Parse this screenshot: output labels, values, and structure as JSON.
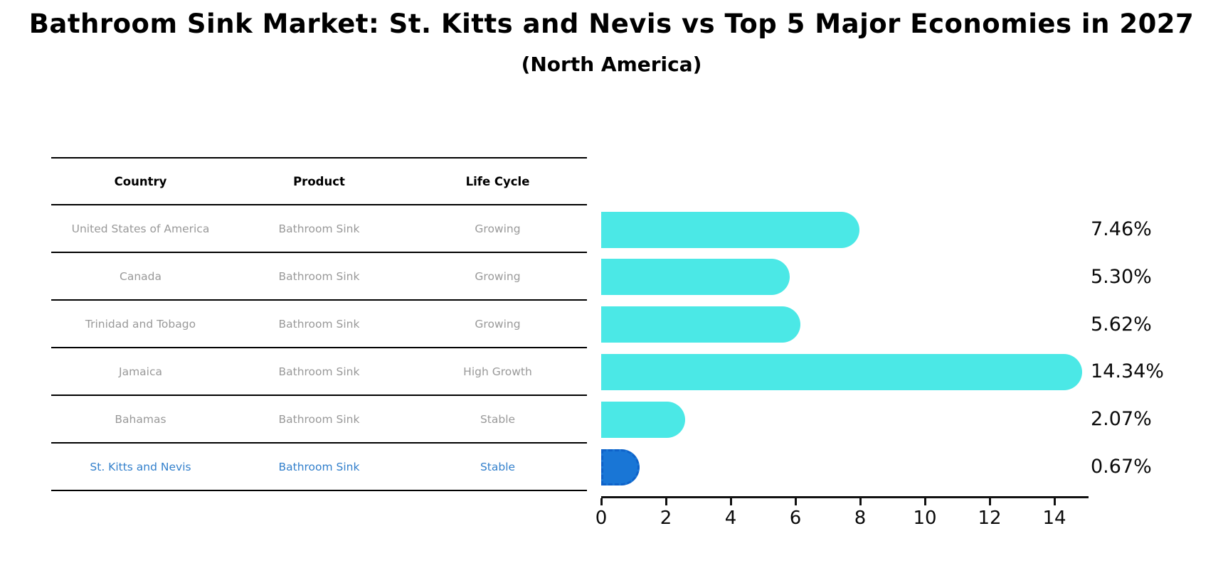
{
  "title": "Bathroom Sink Market: St. Kitts and Nevis vs Top 5 Major Economies in 2027",
  "subtitle": "(North America)",
  "table": {
    "headers": [
      "Country",
      "Product",
      "Life Cycle"
    ],
    "rows": [
      {
        "country": "United States of America",
        "product": "Bathroom Sink",
        "life_cycle": "Growing",
        "highlight": false
      },
      {
        "country": "Canada",
        "product": "Bathroom Sink",
        "life_cycle": "Growing",
        "highlight": false
      },
      {
        "country": "Trinidad and Tobago",
        "product": "Bathroom Sink",
        "life_cycle": "Growing",
        "highlight": false
      },
      {
        "country": "Jamaica",
        "product": "Bathroom Sink",
        "life_cycle": "High Growth",
        "highlight": false
      },
      {
        "country": "Bahamas",
        "product": "Bathroom Sink",
        "life_cycle": "Stable",
        "highlight": false
      },
      {
        "country": "St. Kitts and Nevis",
        "product": "Bathroom Sink",
        "life_cycle": "Stable",
        "highlight": true
      }
    ]
  },
  "chart_data": {
    "type": "bar",
    "orientation": "horizontal",
    "title": "Bathroom Sink Market: St. Kitts and Nevis vs Top 5 Major Economies in 2027 (North America)",
    "categories": [
      "United States of America",
      "Canada",
      "Trinidad and Tobago",
      "Jamaica",
      "Bahamas",
      "St. Kitts and Nevis"
    ],
    "values": [
      7.46,
      5.3,
      5.62,
      14.34,
      2.07,
      0.67
    ],
    "value_labels": [
      "7.46%",
      "5.30%",
      "5.62%",
      "14.34%",
      "2.07%",
      "0.67%"
    ],
    "unit": "%",
    "highlight_index": 5,
    "xlim": [
      0,
      15.05
    ],
    "xticks": [
      0,
      2,
      4,
      6,
      8,
      10,
      12,
      14
    ],
    "xlabel": "",
    "ylabel": "",
    "grid": false,
    "legend": false
  },
  "colors": {
    "bar_default": "#4BE8E6",
    "bar_highlight": "#1976D6",
    "bar_highlight_border": "#0E62C9",
    "highlight_text": "#3380CC",
    "table_text": "#999999",
    "heading_text": "#000000",
    "axis": "#111111"
  }
}
